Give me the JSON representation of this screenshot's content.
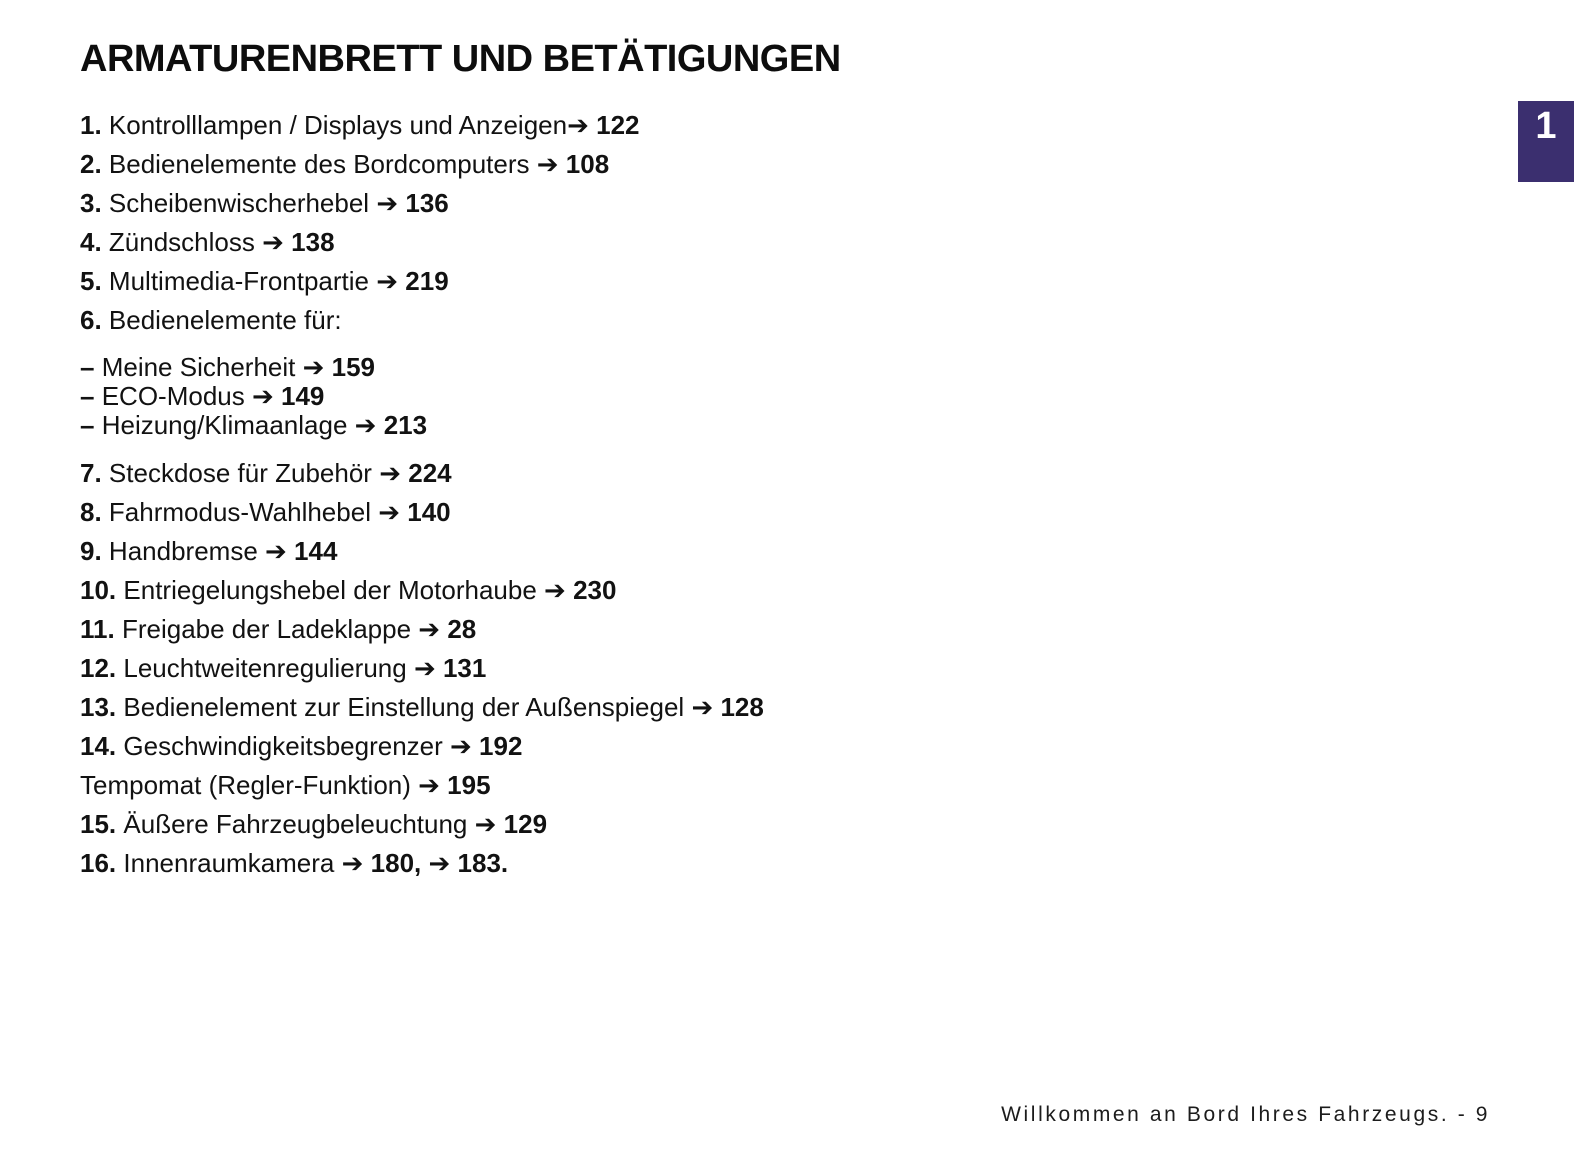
{
  "page": {
    "title": "ARMATURENBRETT UND BETÄTIGUNGEN",
    "footer": "Willkommen an Bord Ihres Fahrzeugs. - 9",
    "arrow_icon": "➔",
    "tab": {
      "label": "1",
      "color": "#3b2f6f"
    }
  },
  "toc": {
    "items": [
      {
        "num": "1.",
        "label": "Kontrolllampen / Displays und Anzeigen",
        "refs": [
          "122"
        ],
        "group": "numbered",
        "space_before_arrow": false
      },
      {
        "num": "2.",
        "label": "Bedienelemente des Bordcomputers",
        "refs": [
          "108"
        ],
        "group": "numbered",
        "space_before_arrow": true
      },
      {
        "num": "3.",
        "label": "Scheibenwischerhebel",
        "refs": [
          "136"
        ],
        "group": "numbered",
        "space_before_arrow": true
      },
      {
        "num": "4.",
        "label": "Zündschloss",
        "refs": [
          "138"
        ],
        "group": "numbered",
        "space_before_arrow": true
      },
      {
        "num": "5.",
        "label": "Multimedia-Frontpartie",
        "refs": [
          "219"
        ],
        "group": "numbered",
        "space_before_arrow": true
      },
      {
        "num": "6.",
        "label": "Bedienelemente für:",
        "refs": [],
        "group": "numbered",
        "space_before_arrow": true
      },
      {
        "num": "–",
        "label": "Meine Sicherheit",
        "refs": [
          "159"
        ],
        "group": "dash",
        "space_before_arrow": true
      },
      {
        "num": "–",
        "label": "ECO-Modus",
        "refs": [
          "149"
        ],
        "group": "dash",
        "space_before_arrow": true
      },
      {
        "num": "–",
        "label": "Heizung/Klimaanlage",
        "refs": [
          "213"
        ],
        "group": "dash",
        "space_before_arrow": true
      },
      {
        "num": "7.",
        "label": "Steckdose für Zubehör",
        "refs": [
          "224"
        ],
        "group": "numbered2",
        "space_before_arrow": true
      },
      {
        "num": "8.",
        "label": "Fahrmodus-Wahlhebel",
        "refs": [
          "140"
        ],
        "group": "numbered2",
        "space_before_arrow": true
      },
      {
        "num": "9.",
        "label": "Handbremse",
        "refs": [
          "144"
        ],
        "group": "numbered2",
        "space_before_arrow": true
      },
      {
        "num": "10.",
        "label": "Entriegelungshebel der Motorhaube",
        "refs": [
          "230"
        ],
        "group": "numbered2",
        "space_before_arrow": true
      },
      {
        "num": "11.",
        "label": "Freigabe der Ladeklappe",
        "refs": [
          "28"
        ],
        "group": "numbered2",
        "space_before_arrow": true
      },
      {
        "num": "12.",
        "label": "Leuchtweitenregulierung",
        "refs": [
          "131"
        ],
        "group": "numbered2",
        "space_before_arrow": true
      },
      {
        "num": "13.",
        "label": "Bedienelement zur Einstellung der Außenspiegel",
        "refs": [
          "128"
        ],
        "group": "numbered2",
        "space_before_arrow": true
      },
      {
        "num": "14.",
        "label": "Geschwindigkeitsbegrenzer",
        "refs": [
          "192"
        ],
        "group": "numbered2",
        "space_before_arrow": true
      },
      {
        "num": "",
        "label": "Tempomat (Regler-Funktion)",
        "refs": [
          "195"
        ],
        "group": "numbered2",
        "space_before_arrow": true
      },
      {
        "num": "15.",
        "label": "Äußere Fahrzeugbeleuchtung",
        "refs": [
          "129"
        ],
        "group": "numbered2",
        "space_before_arrow": true
      },
      {
        "num": "16.",
        "label": "Innenraumkamera",
        "refs": [
          "180,",
          "183."
        ],
        "group": "numbered2",
        "space_before_arrow": true
      }
    ]
  }
}
